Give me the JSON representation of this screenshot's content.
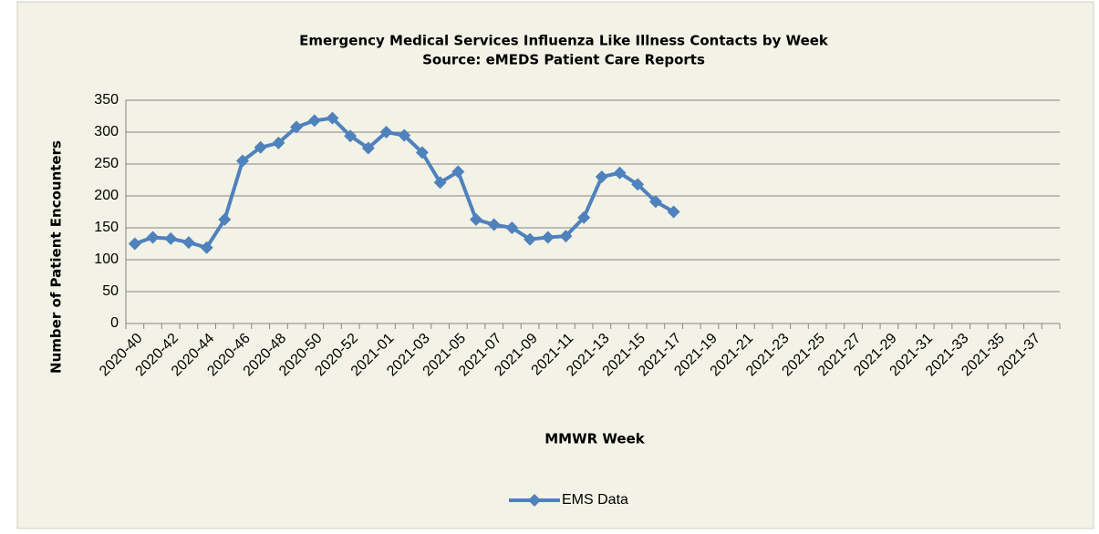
{
  "chart_data": {
    "type": "line",
    "title": "Emergency Medical Services Influenza Like Illness Contacts by Week",
    "subtitle": "Source: eMEDS Patient Care Reports",
    "x_label": "MMWR Week",
    "y_label": "Number of Patient Encounters",
    "categories": [
      "2020-40",
      null,
      "2020-42",
      null,
      "2020-44",
      null,
      "2020-46",
      null,
      "2020-48",
      null,
      "2020-50",
      null,
      "2020-52",
      null,
      "2021-01",
      null,
      "2021-03",
      null,
      "2021-05",
      null,
      "2021-07",
      null,
      "2021-09",
      null,
      "2021-11",
      null,
      "2021-13",
      null,
      "2021-15",
      null,
      "2021-17",
      null,
      "2021-19",
      null,
      "2021-21",
      null,
      "2021-23",
      null,
      "2021-25",
      null,
      "2021-27",
      null,
      "2021-29",
      null,
      "2021-31",
      null,
      "2021-33",
      null,
      "2021-35",
      null,
      "2021-37",
      null
    ],
    "series": [
      {
        "name": "EMS Data",
        "color": "#4f81bd",
        "values": [
          125,
          135,
          133,
          127,
          119,
          163,
          255,
          276,
          283,
          308,
          318,
          322,
          294,
          275,
          300,
          295,
          268,
          221,
          238,
          163,
          155,
          150,
          132,
          135,
          137,
          166,
          230,
          236,
          218,
          191,
          175,
          null,
          null,
          null,
          null,
          null,
          null,
          null,
          null,
          null,
          null,
          null,
          null,
          null,
          null,
          null,
          null,
          null,
          null,
          null,
          null,
          null
        ]
      }
    ],
    "ylim": [
      0,
      350
    ],
    "yticks": [
      0,
      50,
      100,
      150,
      200,
      250,
      300,
      350
    ],
    "grid": true,
    "legend": "bottom"
  }
}
